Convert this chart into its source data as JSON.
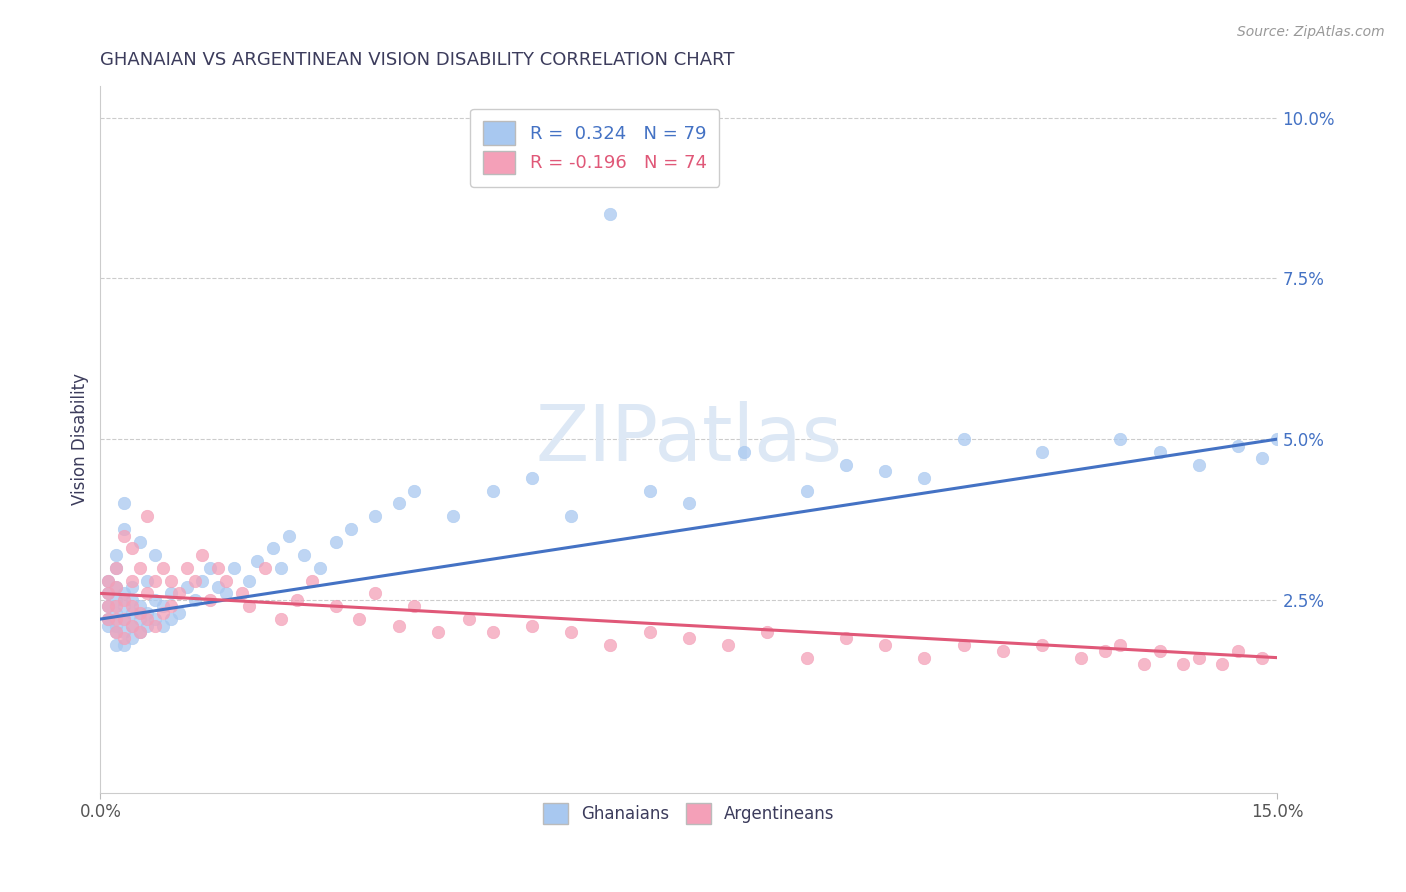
{
  "title": "GHANAIAN VS ARGENTINEAN VISION DISABILITY CORRELATION CHART",
  "source": "Source: ZipAtlas.com",
  "ylabel": "Vision Disability",
  "xlim": [
    0.0,
    0.15
  ],
  "ylim": [
    -0.005,
    0.105
  ],
  "right_yticks": [
    0.025,
    0.05,
    0.075,
    0.1
  ],
  "right_yticklabels": [
    "2.5%",
    "5.0%",
    "7.5%",
    "10.0%"
  ],
  "ghanaian_color": "#a8c8f0",
  "argentinean_color": "#f4a0b8",
  "ghanaian_line_color": "#4472c4",
  "argentinean_line_color": "#e05878",
  "R_ghanaian": 0.324,
  "N_ghanaian": 79,
  "R_argentinean": -0.196,
  "N_argentinean": 74,
  "title_color": "#3c3c5c",
  "axis_color": "#3c3c5c",
  "tick_color": "#555555",
  "watermark": "ZIPatlas",
  "background_color": "#ffffff",
  "ghanaian_x": [
    0.001,
    0.001,
    0.001,
    0.001,
    0.001,
    0.002,
    0.002,
    0.002,
    0.002,
    0.002,
    0.002,
    0.002,
    0.002,
    0.003,
    0.003,
    0.003,
    0.003,
    0.003,
    0.003,
    0.003,
    0.004,
    0.004,
    0.004,
    0.004,
    0.004,
    0.005,
    0.005,
    0.005,
    0.005,
    0.006,
    0.006,
    0.006,
    0.007,
    0.007,
    0.007,
    0.008,
    0.008,
    0.009,
    0.009,
    0.01,
    0.011,
    0.012,
    0.013,
    0.014,
    0.015,
    0.016,
    0.017,
    0.019,
    0.02,
    0.022,
    0.023,
    0.024,
    0.026,
    0.028,
    0.03,
    0.032,
    0.035,
    0.038,
    0.04,
    0.045,
    0.05,
    0.055,
    0.06,
    0.065,
    0.07,
    0.075,
    0.082,
    0.09,
    0.095,
    0.1,
    0.105,
    0.11,
    0.12,
    0.13,
    0.135,
    0.14,
    0.145,
    0.148,
    0.15
  ],
  "ghanaian_y": [
    0.021,
    0.022,
    0.024,
    0.026,
    0.028,
    0.018,
    0.02,
    0.021,
    0.023,
    0.025,
    0.027,
    0.03,
    0.032,
    0.018,
    0.02,
    0.022,
    0.024,
    0.026,
    0.036,
    0.04,
    0.019,
    0.021,
    0.023,
    0.025,
    0.027,
    0.02,
    0.022,
    0.024,
    0.034,
    0.021,
    0.023,
    0.028,
    0.022,
    0.025,
    0.032,
    0.021,
    0.024,
    0.022,
    0.026,
    0.023,
    0.027,
    0.025,
    0.028,
    0.03,
    0.027,
    0.026,
    0.03,
    0.028,
    0.031,
    0.033,
    0.03,
    0.035,
    0.032,
    0.03,
    0.034,
    0.036,
    0.038,
    0.04,
    0.042,
    0.038,
    0.042,
    0.044,
    0.038,
    0.085,
    0.042,
    0.04,
    0.048,
    0.042,
    0.046,
    0.045,
    0.044,
    0.05,
    0.048,
    0.05,
    0.048,
    0.046,
    0.049,
    0.047,
    0.05
  ],
  "argentinean_x": [
    0.001,
    0.001,
    0.001,
    0.001,
    0.002,
    0.002,
    0.002,
    0.002,
    0.002,
    0.003,
    0.003,
    0.003,
    0.003,
    0.004,
    0.004,
    0.004,
    0.004,
    0.005,
    0.005,
    0.005,
    0.006,
    0.006,
    0.006,
    0.007,
    0.007,
    0.008,
    0.008,
    0.009,
    0.009,
    0.01,
    0.011,
    0.012,
    0.013,
    0.014,
    0.015,
    0.016,
    0.018,
    0.019,
    0.021,
    0.023,
    0.025,
    0.027,
    0.03,
    0.033,
    0.035,
    0.038,
    0.04,
    0.043,
    0.047,
    0.05,
    0.055,
    0.06,
    0.065,
    0.07,
    0.075,
    0.08,
    0.085,
    0.09,
    0.095,
    0.1,
    0.105,
    0.11,
    0.115,
    0.12,
    0.125,
    0.128,
    0.13,
    0.133,
    0.135,
    0.138,
    0.14,
    0.143,
    0.145,
    0.148
  ],
  "argentinean_y": [
    0.022,
    0.024,
    0.026,
    0.028,
    0.02,
    0.022,
    0.024,
    0.027,
    0.03,
    0.019,
    0.022,
    0.025,
    0.035,
    0.021,
    0.024,
    0.028,
    0.033,
    0.02,
    0.023,
    0.03,
    0.022,
    0.026,
    0.038,
    0.021,
    0.028,
    0.023,
    0.03,
    0.024,
    0.028,
    0.026,
    0.03,
    0.028,
    0.032,
    0.025,
    0.03,
    0.028,
    0.026,
    0.024,
    0.03,
    0.022,
    0.025,
    0.028,
    0.024,
    0.022,
    0.026,
    0.021,
    0.024,
    0.02,
    0.022,
    0.02,
    0.021,
    0.02,
    0.018,
    0.02,
    0.019,
    0.018,
    0.02,
    0.016,
    0.019,
    0.018,
    0.016,
    0.018,
    0.017,
    0.018,
    0.016,
    0.017,
    0.018,
    0.015,
    0.017,
    0.015,
    0.016,
    0.015,
    0.017,
    0.016
  ],
  "gh_trend_x0": 0.0,
  "gh_trend_y0": 0.022,
  "gh_trend_x1": 0.15,
  "gh_trend_y1": 0.05,
  "ar_trend_x0": 0.0,
  "ar_trend_y0": 0.026,
  "ar_trend_x1": 0.15,
  "ar_trend_y1": 0.016
}
